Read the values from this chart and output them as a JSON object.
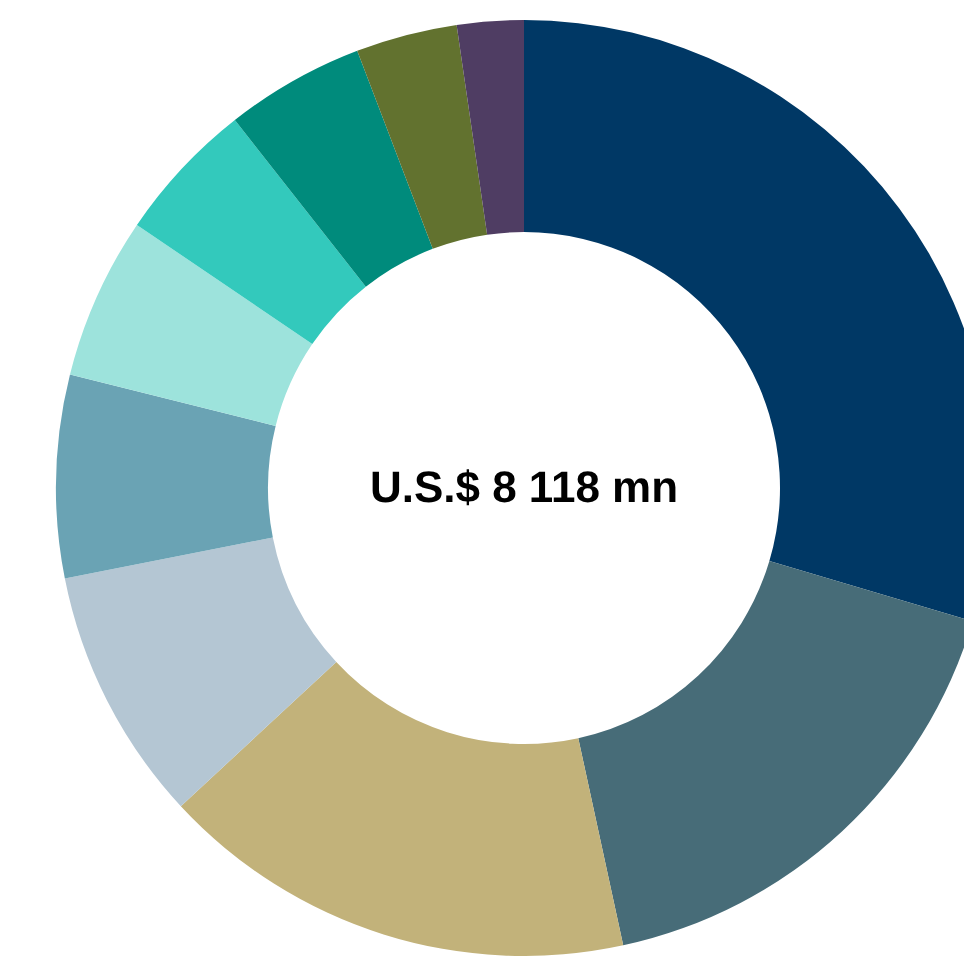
{
  "chart_data": {
    "type": "donut",
    "title": "U.S.$ 8 118 mn",
    "categories": [
      null,
      null,
      null,
      null,
      null,
      null,
      null,
      null,
      null,
      null
    ],
    "values": [
      29.6,
      17,
      16.5,
      8.8,
      7,
      5.6,
      4.9,
      4.8,
      3.5,
      2.3
    ],
    "colors": [
      "#003865",
      "#476c78",
      "#c2b27a",
      "#b4c6d3",
      "#6aa3b4",
      "#9de3dc",
      "#33c9bc",
      "#008b7c",
      "#62722f",
      "#4f3d63"
    ]
  }
}
